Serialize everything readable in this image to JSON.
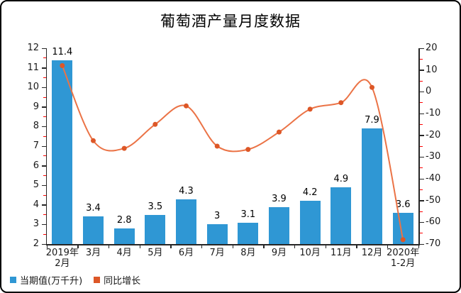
{
  "chart_data": {
    "type": "bar",
    "combo": "bar+line dual axis",
    "title": "葡萄酒产量月度数据",
    "categories": [
      "2019年\n2月",
      "3月",
      "4月",
      "5月",
      "6月",
      "7月",
      "8月",
      "9月",
      "10月",
      "11月",
      "12月",
      "2020年\n1-2月"
    ],
    "series": [
      {
        "name": "当期值(万千升)",
        "type": "bar",
        "axis": "left",
        "color": "#2F97D4",
        "values": [
          11.4,
          3.4,
          2.8,
          3.5,
          4.3,
          3,
          3.1,
          3.9,
          4.2,
          4.9,
          7.9,
          3.6
        ],
        "labels": [
          "11.4",
          "3.4",
          "2.8",
          "3.5",
          "4.3",
          "3",
          "3.1",
          "3.9",
          "4.2",
          "4.9",
          "7.9",
          "3.6"
        ]
      },
      {
        "name": "同比增长",
        "type": "line",
        "axis": "right",
        "line_color": "#EB7346",
        "marker_color": "#DD5727",
        "values": [
          12,
          -22.5,
          -26,
          -15,
          -6.5,
          -25,
          -26.5,
          -18.5,
          -8,
          -5,
          2,
          -68
        ]
      }
    ],
    "left_axis": {
      "min": 2,
      "max": 12,
      "major_step": 1,
      "minor_step": 0.5,
      "tick_labels": [
        "12",
        "11",
        "10",
        "9",
        "8",
        "7",
        "6",
        "5",
        "4",
        "3",
        "2"
      ]
    },
    "right_axis": {
      "min": -70,
      "max": 20,
      "major_step": 10,
      "minor_step": 5,
      "tick_labels": [
        "20",
        "10",
        "0",
        "-10",
        "-20",
        "-30",
        "-40",
        "-50",
        "-60",
        "-70"
      ]
    },
    "grid": false,
    "legend_position": "bottom-left",
    "colors": {
      "background": "#FFFFFF",
      "border": "#000000",
      "axis": "#262626",
      "minor_tick": "#FF0000",
      "text": "#1A1A1A"
    }
  }
}
